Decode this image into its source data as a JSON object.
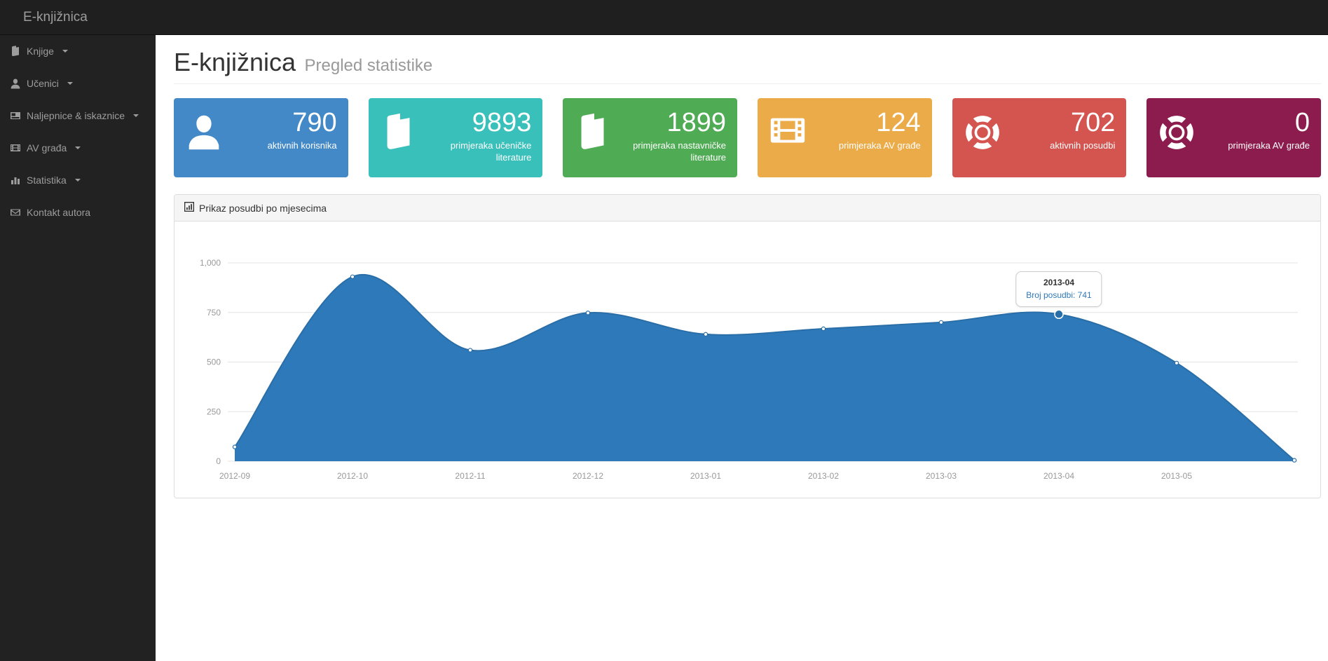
{
  "brand": "E-knjižnica",
  "sidebar": {
    "items": [
      {
        "label": "Knjige",
        "icon": "book-icon",
        "caret": true
      },
      {
        "label": "Učenici",
        "icon": "user-icon",
        "caret": true
      },
      {
        "label": "Naljepnice & iskaznice",
        "icon": "card-icon",
        "caret": true
      },
      {
        "label": "AV građa",
        "icon": "film-icon",
        "caret": true
      },
      {
        "label": "Statistika",
        "icon": "bar-chart-icon",
        "caret": true
      },
      {
        "label": "Kontakt autora",
        "icon": "envelope-icon",
        "caret": false
      }
    ]
  },
  "header": {
    "title": "E-knjižnica",
    "subtitle": "Pregled statistike"
  },
  "stats": [
    {
      "value": "790",
      "label": "aktivnih korisnika",
      "icon": "user-icon",
      "color": "#4389c8"
    },
    {
      "value": "9893",
      "label": "primjeraka učeničke literature",
      "icon": "book-icon",
      "color": "#3ac0ba"
    },
    {
      "value": "1899",
      "label": "primjeraka nastavničke literature",
      "icon": "book-icon",
      "color": "#50ab55"
    },
    {
      "value": "124",
      "label": "primjeraka AV građe",
      "icon": "film-icon",
      "color": "#ecab49"
    },
    {
      "value": "702",
      "label": "aktivnih posudbi",
      "icon": "life-ring-icon",
      "color": "#d45450"
    },
    {
      "value": "0",
      "label": "primjeraka AV građe",
      "icon": "life-ring-icon",
      "color": "#8c1c4d"
    }
  ],
  "panel": {
    "title": "Prikaz posudbi po mjesecima"
  },
  "chart_data": {
    "type": "area",
    "title": "Prikaz posudbi po mjesecima",
    "x_labels": [
      "2012-09",
      "2012-10",
      "2012-11",
      "2012-12",
      "2013-01",
      "2013-02",
      "2013-03",
      "2013-04",
      "2013-05"
    ],
    "values": [
      72,
      930,
      560,
      748,
      640,
      668,
      700,
      741,
      495,
      5
    ],
    "note": "10th point at right edge has no x tick label",
    "ylim": [
      0,
      1000
    ],
    "yticks": [
      {
        "v": 0,
        "label": "0"
      },
      {
        "v": 250,
        "label": "250"
      },
      {
        "v": 500,
        "label": "500"
      },
      {
        "v": 750,
        "label": "750"
      },
      {
        "v": 1000,
        "label": "1,000"
      }
    ],
    "grid": true,
    "legend": "none",
    "fill_color": "#2e79b9",
    "line_color": "#2a6ea8",
    "selected_index": 7,
    "tooltip": {
      "title": "2013-04",
      "value": "Broj posudbi: 741"
    }
  }
}
